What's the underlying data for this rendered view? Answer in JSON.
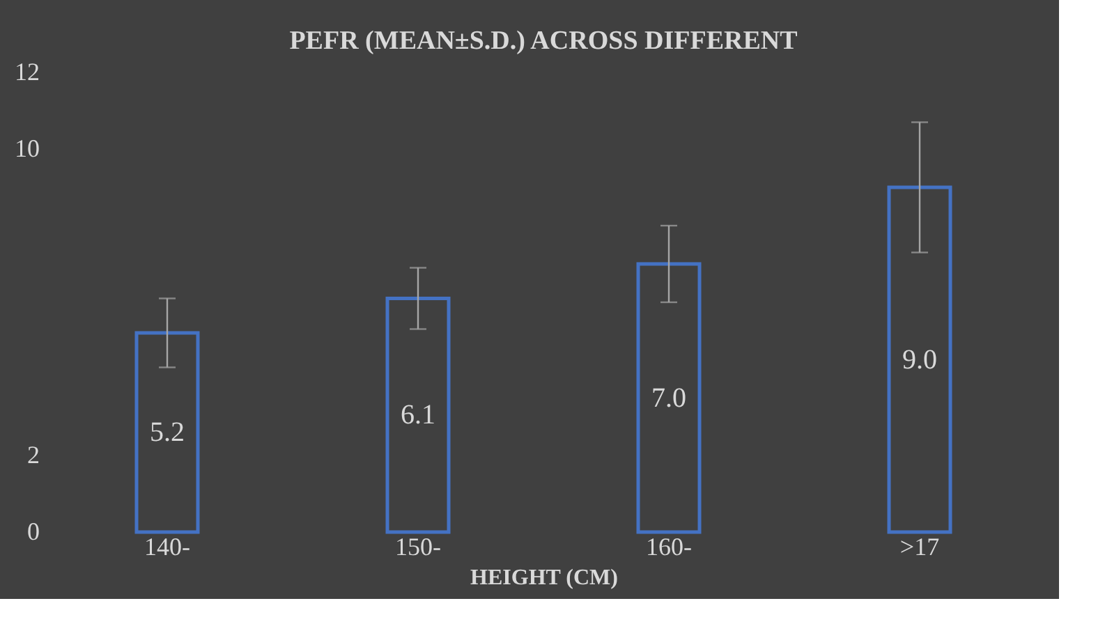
{
  "chart_data": {
    "type": "bar",
    "title": "PEFR (MEAN±S.D.) ACROSS DIFFERENT",
    "xlabel": "HEIGHT (CM)",
    "categories": [
      "140-",
      "150-",
      "160-",
      ">17"
    ],
    "series": [
      {
        "color": "#4472c4",
        "values": [
          5.2,
          6.1,
          7.0,
          9.0
        ],
        "errors": [
          0.9,
          0.8,
          1.0,
          1.7
        ],
        "value_labels": [
          "5.2",
          "6.1",
          "7.0",
          "9.0"
        ]
      }
    ],
    "ylim": [
      0,
      12
    ],
    "yticks": [
      0,
      2,
      10,
      12
    ],
    "grid": false
  }
}
